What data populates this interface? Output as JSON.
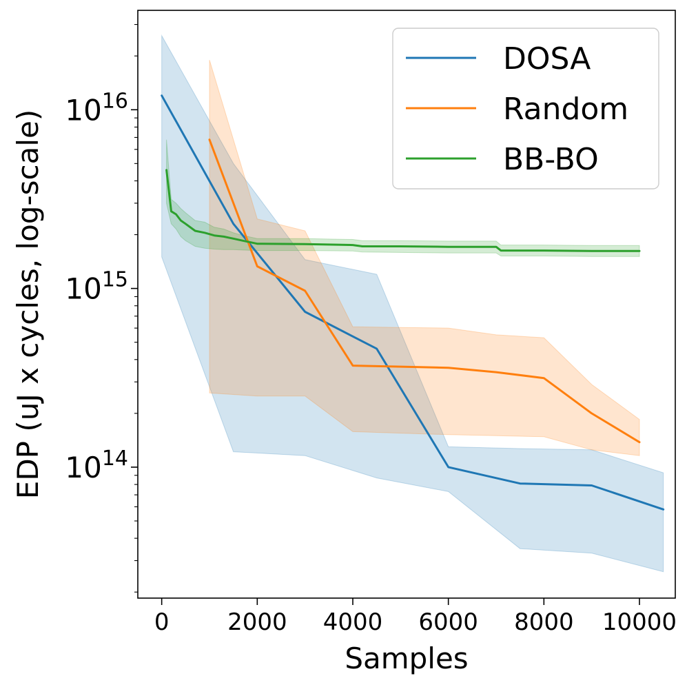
{
  "chart_data": {
    "type": "line",
    "title": "",
    "xlabel": "Samples",
    "ylabel": "EDP (uJ x cycles, log-scale)",
    "yscale": "log",
    "xlim": [
      -500,
      10750
    ],
    "ylim": [
      18500000000000.0,
      3.6e+16
    ],
    "x_ticks": [
      0,
      2000,
      4000,
      6000,
      8000,
      10000
    ],
    "x_tick_labels": [
      "0",
      "2000",
      "4000",
      "6000",
      "8000",
      "10000"
    ],
    "y_major_ticks": [
      {
        "value": 100000000000000.0,
        "base": "10",
        "exp": "14"
      },
      {
        "value": 1000000000000000.0,
        "base": "10",
        "exp": "15"
      },
      {
        "value": 1e+16,
        "base": "10",
        "exp": "16"
      }
    ],
    "legend_position": "upper right",
    "series": [
      {
        "name": "DOSA",
        "color": "#1f77b4",
        "fill_color": "#1f77b4",
        "x": [
          0,
          1500,
          3000,
          4500,
          6000,
          7500,
          9000,
          10500
        ],
        "values": [
          1.2e+16,
          2300000000000000.0,
          740000000000000.0,
          460000000000000.0,
          100000000000000.0,
          81000000000000.0,
          79000000000000.0,
          58000000000000.0
        ],
        "lower": [
          1500000000000000.0,
          122000000000000.0,
          116000000000000.0,
          87000000000000.0,
          73000000000000.0,
          35000000000000.0,
          33000000000000.0,
          26000000000000.0
        ],
        "upper": [
          2.6e+16,
          5000000000000000.0,
          1450000000000000.0,
          1200000000000000.0,
          130000000000000.0,
          127000000000000.0,
          125000000000000.0,
          93000000000000.0
        ]
      },
      {
        "name": "Random",
        "color": "#ff7f0e",
        "fill_color": "#ff7f0e",
        "x": [
          1000,
          2000,
          3000,
          4000,
          5000,
          6000,
          7000,
          8000,
          9000,
          10000
        ],
        "values": [
          6800000000000000.0,
          1330000000000000.0,
          970000000000000.0,
          370000000000000.0,
          365000000000000.0,
          360000000000000.0,
          340000000000000.0,
          315000000000000.0,
          200000000000000.0,
          138000000000000.0
        ],
        "lower": [
          260000000000000.0,
          250000000000000.0,
          250000000000000.0,
          158000000000000.0,
          155000000000000.0,
          152000000000000.0,
          150000000000000.0,
          148000000000000.0,
          125000000000000.0,
          116000000000000.0
        ],
        "upper": [
          1.9e+16,
          2450000000000000.0,
          2100000000000000.0,
          610000000000000.0,
          605000000000000.0,
          600000000000000.0,
          550000000000000.0,
          530000000000000.0,
          290000000000000.0,
          185000000000000.0
        ]
      },
      {
        "name": "BB-BO",
        "color": "#2ca02c",
        "fill_color": "#2ca02c",
        "x": [
          100,
          200,
          300,
          400,
          500,
          700,
          900,
          1100,
          1300,
          1500,
          1700,
          2000,
          3000,
          4000,
          4200,
          5000,
          6000,
          7000,
          7100,
          8000,
          9000,
          10000
        ],
        "values": [
          4600000000000000.0,
          2700000000000000.0,
          2600000000000000.0,
          2400000000000000.0,
          2300000000000000.0,
          2100000000000000.0,
          2050000000000000.0,
          1980000000000000.0,
          1950000000000000.0,
          1900000000000000.0,
          1850000000000000.0,
          1780000000000000.0,
          1770000000000000.0,
          1750000000000000.0,
          1720000000000000.0,
          1720000000000000.0,
          1710000000000000.0,
          1710000000000000.0,
          1630000000000000.0,
          1630000000000000.0,
          1620000000000000.0,
          1620000000000000.0
        ],
        "lower": [
          3000000000000000.0,
          2300000000000000.0,
          2150000000000000.0,
          1950000000000000.0,
          1850000000000000.0,
          1720000000000000.0,
          1680000000000000.0,
          1660000000000000.0,
          1650000000000000.0,
          1650000000000000.0,
          1640000000000000.0,
          1630000000000000.0,
          1630000000000000.0,
          1620000000000000.0,
          1600000000000000.0,
          1590000000000000.0,
          1580000000000000.0,
          1580000000000000.0,
          1520000000000000.0,
          1520000000000000.0,
          1510000000000000.0,
          1510000000000000.0
        ],
        "upper": [
          6800000000000000.0,
          3150000000000000.0,
          3000000000000000.0,
          2800000000000000.0,
          2650000000000000.0,
          2400000000000000.0,
          2350000000000000.0,
          2200000000000000.0,
          2150000000000000.0,
          2050000000000000.0,
          1980000000000000.0,
          1900000000000000.0,
          1900000000000000.0,
          1880000000000000.0,
          1850000000000000.0,
          1850000000000000.0,
          1840000000000000.0,
          1840000000000000.0,
          1750000000000000.0,
          1750000000000000.0,
          1740000000000000.0,
          1740000000000000.0
        ]
      }
    ]
  }
}
